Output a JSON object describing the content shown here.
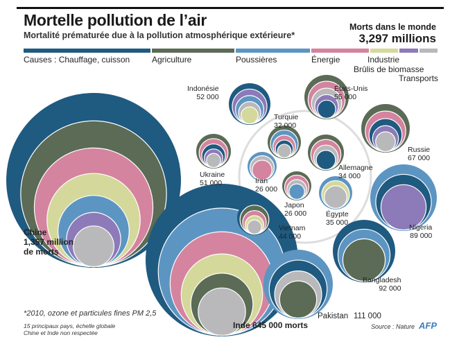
{
  "title": "Mortelle pollution de l’air",
  "subtitle": "Mortalité prématurée due à la pollution atmosphérique extérieure*",
  "world": {
    "label": "Morts dans le monde",
    "value": "3,297 millions"
  },
  "chart_data": {
    "type": "bubble",
    "title": "Mortelle pollution de l’air",
    "causes": [
      {
        "key": "heating",
        "label": "Causes : Chauffage, cuisson",
        "color": "#1f5a80"
      },
      {
        "key": "agriculture",
        "label": "Agriculture",
        "color": "#5b6b55"
      },
      {
        "key": "dust",
        "label": "Poussières",
        "color": "#5d95c2"
      },
      {
        "key": "energy",
        "label": "Énergie",
        "color": "#d4849f"
      },
      {
        "key": "industry",
        "label": "Industrie",
        "color": "#d4d99b"
      },
      {
        "key": "biomass",
        "label": "Brûlis de biomasse",
        "color": "#8d7ab8"
      },
      {
        "key": "transport",
        "label": "Transports",
        "color": "#b9b9bb"
      }
    ],
    "countries": [
      {
        "name": "Chine",
        "label": "1,357 million",
        "suffix": "de morts",
        "deaths": 1357000,
        "layers": [
          "heating",
          "agriculture",
          "energy",
          "industry",
          "dust",
          "biomass",
          "transport"
        ]
      },
      {
        "name": "Inde",
        "label": "Inde 645 000 morts",
        "deaths": 645000,
        "layers": [
          "heating",
          "dust",
          "energy",
          "industry",
          "agriculture",
          "transport"
        ]
      },
      {
        "name": "Pakistan",
        "label": "111 000",
        "deaths": 111000,
        "layers": [
          "dust",
          "heating",
          "transport",
          "agriculture"
        ]
      },
      {
        "name": "Bangladesh",
        "label": "92 000",
        "deaths": 92000,
        "layers": [
          "heating",
          "dust",
          "agriculture"
        ]
      },
      {
        "name": "Nigeria",
        "label": "89 000",
        "deaths": 89000,
        "layers": [
          "dust",
          "heating",
          "biomass"
        ]
      },
      {
        "name": "Russie",
        "label": "67 000",
        "deaths": 67000,
        "layers": [
          "agriculture",
          "energy",
          "heating",
          "biomass",
          "transport"
        ]
      },
      {
        "name": "États-Unis",
        "label": "55 000",
        "deaths": 55000,
        "layers": [
          "agriculture",
          "energy",
          "transport",
          "biomass",
          "heating"
        ]
      },
      {
        "name": "Indonésie",
        "label": "52 000",
        "deaths": 52000,
        "layers": [
          "heating",
          "biomass",
          "dust",
          "transport",
          "industry"
        ]
      },
      {
        "name": "Ukraine",
        "label": "51 000",
        "deaths": 51000,
        "layers": [
          "agriculture",
          "energy",
          "heating",
          "biomass",
          "transport"
        ]
      },
      {
        "name": "Vietnam",
        "label": "44 000",
        "deaths": 44000,
        "layers": [
          "heating",
          "agriculture",
          "energy",
          "industry",
          "transport"
        ]
      },
      {
        "name": "Égypte",
        "label": "35 000",
        "deaths": 35000,
        "layers": [
          "dust",
          "industry",
          "transport"
        ]
      },
      {
        "name": "Allemagne",
        "label": "34 000",
        "deaths": 34000,
        "layers": [
          "agriculture",
          "energy",
          "transport",
          "heating"
        ]
      },
      {
        "name": "Turquie",
        "label": "32 000",
        "deaths": 32000,
        "layers": [
          "agriculture",
          "dust",
          "energy",
          "heating",
          "transport"
        ]
      },
      {
        "name": "Japon",
        "label": "26 000",
        "deaths": 26000,
        "layers": [
          "agriculture",
          "energy",
          "transport",
          "dust"
        ]
      },
      {
        "name": "Iran",
        "label": "26 000",
        "deaths": 26000,
        "layers": [
          "dust",
          "transport",
          "energy"
        ]
      }
    ]
  },
  "notes": {
    "footnote": "*2010, ozone et particules fines PM 2,5",
    "scale1": "15 principaux pays, échelle globale",
    "scale2": "Chine et Inde non respectée",
    "source": "Source : Nature",
    "logo": "AFP"
  }
}
